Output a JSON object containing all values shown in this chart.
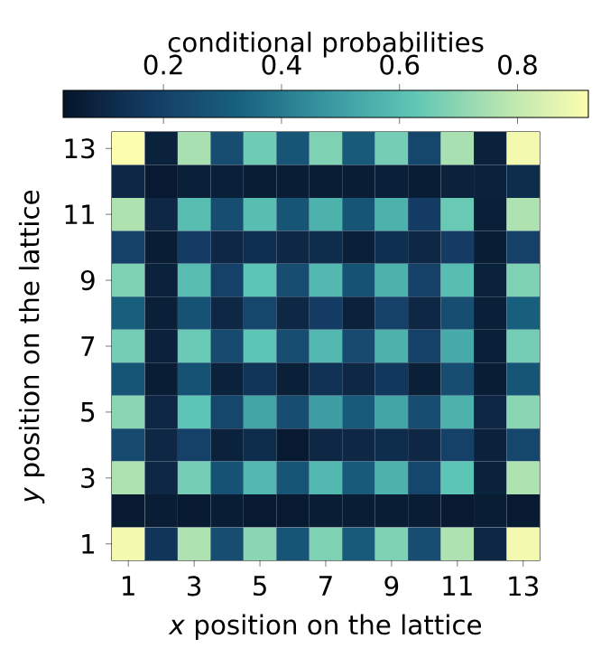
{
  "chart_data": {
    "type": "heatmap",
    "xlabel": "*x* position on the lattice",
    "ylabel": "*y* position on the lattice",
    "clabel": "conditional probabilities",
    "categories": [
      "1",
      null,
      "3",
      null,
      "5",
      null,
      "7",
      null,
      "9",
      null,
      "11",
      null,
      "13"
    ],
    "y_categories": [
      "13",
      null,
      "11",
      null,
      "9",
      null,
      "7",
      null,
      "5",
      null,
      "3",
      null,
      "1"
    ],
    "cells": [
      [
        0.92,
        0.08,
        0.75,
        0.25,
        0.65,
        0.28,
        0.68,
        0.3,
        0.66,
        0.22,
        0.75,
        0.08,
        0.9
      ],
      [
        0.1,
        0.05,
        0.07,
        0.07,
        0.06,
        0.06,
        0.06,
        0.06,
        0.07,
        0.06,
        0.08,
        0.08,
        0.12
      ],
      [
        0.76,
        0.1,
        0.6,
        0.25,
        0.6,
        0.28,
        0.56,
        0.28,
        0.56,
        0.18,
        0.64,
        0.07,
        0.76
      ],
      [
        0.2,
        0.06,
        0.18,
        0.1,
        0.13,
        0.1,
        0.12,
        0.07,
        0.13,
        0.1,
        0.18,
        0.06,
        0.2
      ],
      [
        0.68,
        0.08,
        0.6,
        0.2,
        0.62,
        0.25,
        0.58,
        0.27,
        0.56,
        0.2,
        0.6,
        0.08,
        0.68
      ],
      [
        0.32,
        0.07,
        0.27,
        0.1,
        0.22,
        0.1,
        0.18,
        0.08,
        0.2,
        0.1,
        0.25,
        0.07,
        0.32
      ],
      [
        0.66,
        0.08,
        0.64,
        0.24,
        0.62,
        0.25,
        0.58,
        0.24,
        0.56,
        0.2,
        0.54,
        0.07,
        0.66
      ],
      [
        0.28,
        0.06,
        0.27,
        0.08,
        0.15,
        0.07,
        0.14,
        0.1,
        0.16,
        0.07,
        0.25,
        0.06,
        0.28
      ],
      [
        0.7,
        0.1,
        0.62,
        0.22,
        0.52,
        0.25,
        0.5,
        0.3,
        0.52,
        0.25,
        0.56,
        0.1,
        0.7
      ],
      [
        0.24,
        0.1,
        0.2,
        0.08,
        0.12,
        0.05,
        0.1,
        0.1,
        0.12,
        0.1,
        0.2,
        0.08,
        0.22
      ],
      [
        0.76,
        0.1,
        0.66,
        0.27,
        0.58,
        0.28,
        0.58,
        0.3,
        0.56,
        0.22,
        0.62,
        0.08,
        0.76
      ],
      [
        0.05,
        0.06,
        0.05,
        0.06,
        0.05,
        0.05,
        0.06,
        0.06,
        0.06,
        0.06,
        0.05,
        0.06,
        0.05
      ],
      [
        0.9,
        0.15,
        0.76,
        0.25,
        0.7,
        0.28,
        0.68,
        0.3,
        0.68,
        0.25,
        0.76,
        0.1,
        0.9
      ]
    ],
    "clim": [
      0.03,
      0.92
    ],
    "cticks": [
      0.2,
      0.4,
      0.6,
      0.8
    ]
  }
}
